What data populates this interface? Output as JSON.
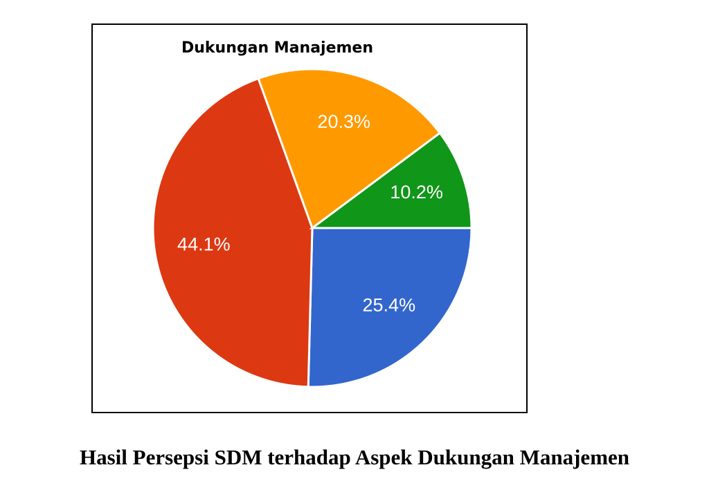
{
  "chart_data": {
    "type": "pie",
    "title": "Dukungan Manajemen",
    "caption": "Hasil Persepsi SDM terhadap Aspek Dukungan Manajemen",
    "values": [
      25.4,
      44.1,
      20.3,
      10.2
    ],
    "value_labels": [
      "25.4%",
      "44.1%",
      "20.3%",
      "10.2%"
    ],
    "colors": [
      "#3366cc",
      "#dc3912",
      "#ff9900",
      "#109618"
    ]
  }
}
